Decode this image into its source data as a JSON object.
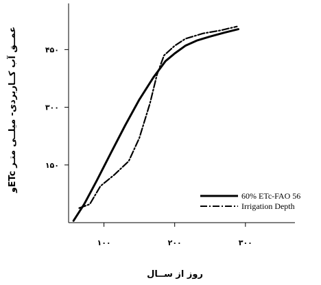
{
  "chart_data": {
    "type": "line",
    "title": "",
    "xlabel": "روز از ســال",
    "ylabel": "عمــق آب کــاربردی- میلــی متـر",
    "ylabel_suffix": "ETcو",
    "xlim": [
      50,
      370
    ],
    "ylim": [
      0,
      570
    ],
    "x_ticks": [
      100,
      200,
      300
    ],
    "x_tick_labels": [
      "۱۰۰",
      "۲۰۰",
      "۳۰۰"
    ],
    "y_ticks": [
      150,
      300,
      450
    ],
    "y_tick_labels": [
      "۱۵۰",
      "۳۰۰",
      "۴۵۰"
    ],
    "grid": false,
    "legend_position": "bottom-right",
    "series": [
      {
        "name": "60% ETc-FAO 56",
        "style": "solid",
        "color": "#000000",
        "x": [
          57,
          72,
          90,
          110,
          130,
          150,
          170,
          187,
          200,
          215,
          232,
          250,
          270,
          290
        ],
        "y": [
          5,
          48,
          110,
          182,
          253,
          320,
          378,
          420,
          440,
          460,
          474,
          484,
          494,
          503
        ]
      },
      {
        "name": "Irrigation Depth",
        "style": "dashdot",
        "color": "#000000",
        "x": [
          65,
          80,
          95,
          115,
          135,
          150,
          165,
          175,
          185,
          200,
          215,
          240,
          265,
          288
        ],
        "y": [
          38,
          48,
          95,
          125,
          160,
          220,
          310,
          385,
          435,
          460,
          478,
          492,
          500,
          510
        ]
      }
    ]
  }
}
